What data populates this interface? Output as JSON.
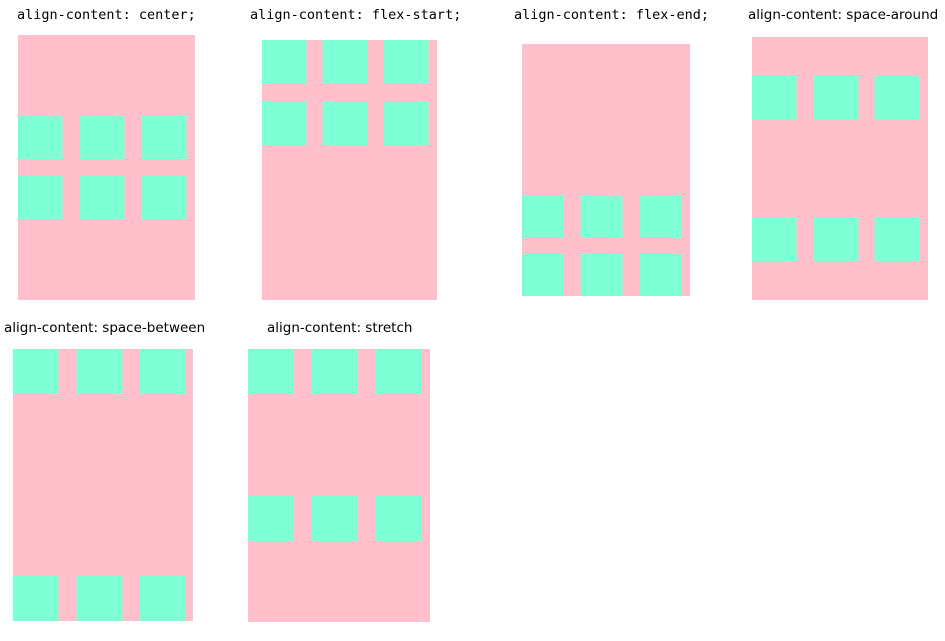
{
  "colors": {
    "container": "#ffc0cb",
    "item": "#7fffd4"
  },
  "demos": [
    {
      "label": "align-content: center;"
    },
    {
      "label": "align-content: flex-start;"
    },
    {
      "label": "align-content: flex-end;"
    },
    {
      "label": "align-content: space-around"
    },
    {
      "label": "align-content: space-between"
    },
    {
      "label": "align-content: stretch"
    }
  ]
}
